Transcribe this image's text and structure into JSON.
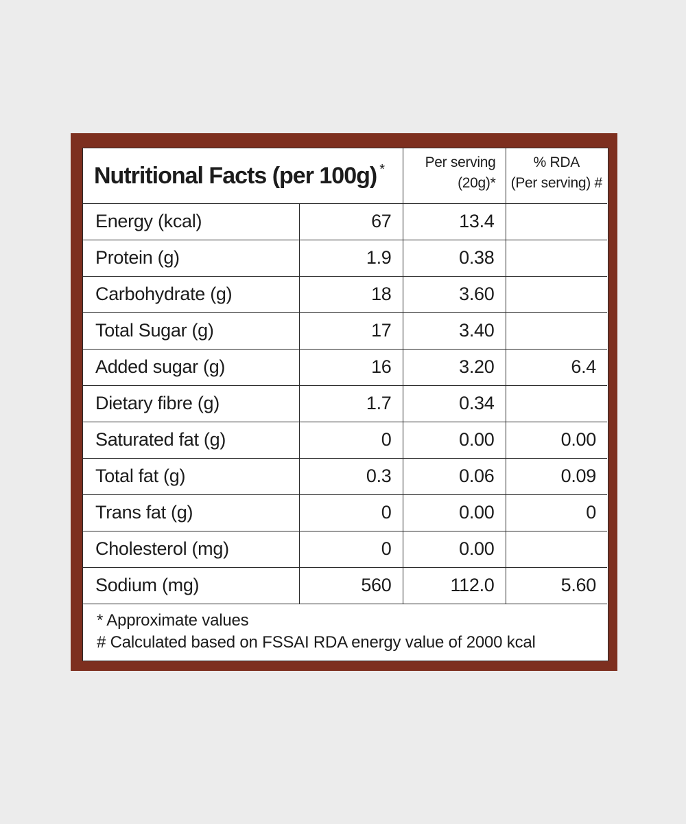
{
  "header": {
    "title": "Nutritional Facts (per 100g)",
    "title_mark": "*",
    "per_serving_line1": "Per serving",
    "per_serving_line2": "(20g)*",
    "rda_line1": "% RDA",
    "rda_line2": "(Per serving) #"
  },
  "rows": [
    {
      "nutrient": "Energy (kcal)",
      "per100g": "67",
      "per_serving": "13.4",
      "rda": ""
    },
    {
      "nutrient": "Protein (g)",
      "per100g": "1.9",
      "per_serving": "0.38",
      "rda": ""
    },
    {
      "nutrient": "Carbohydrate (g)",
      "per100g": "18",
      "per_serving": "3.60",
      "rda": ""
    },
    {
      "nutrient": "Total Sugar (g)",
      "per100g": "17",
      "per_serving": "3.40",
      "rda": ""
    },
    {
      "nutrient": "Added sugar (g)",
      "per100g": "16",
      "per_serving": "3.20",
      "rda": "6.4"
    },
    {
      "nutrient": "Dietary fibre (g)",
      "per100g": "1.7",
      "per_serving": "0.34",
      "rda": ""
    },
    {
      "nutrient": "Saturated fat (g)",
      "per100g": "0",
      "per_serving": "0.00",
      "rda": "0.00"
    },
    {
      "nutrient": "Total fat (g)",
      "per100g": "0.3",
      "per_serving": "0.06",
      "rda": "0.09"
    },
    {
      "nutrient": "Trans fat (g)",
      "per100g": "0",
      "per_serving": "0.00",
      "rda": "0"
    },
    {
      "nutrient": "Cholesterol (mg)",
      "per100g": "0",
      "per_serving": "0.00",
      "rda": ""
    },
    {
      "nutrient": "Sodium (mg)",
      "per100g": "560",
      "per_serving": "112.0",
      "rda": "5.60"
    }
  ],
  "footnotes": {
    "approx": "* Approximate values",
    "calc": "# Calculated based on FSSAI RDA energy value of 2000 kcal"
  },
  "colors": {
    "frame": "#7d2f1f",
    "panel": "#ffffff",
    "background": "#ececec"
  }
}
